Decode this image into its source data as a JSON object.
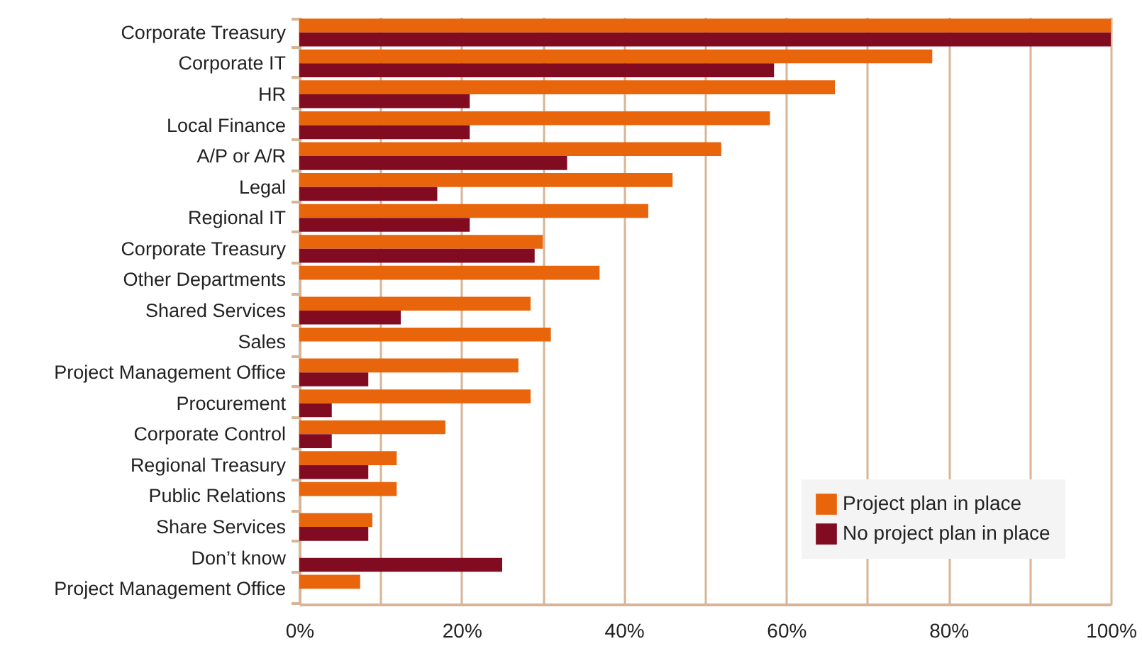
{
  "chart_data": {
    "type": "bar",
    "orientation": "horizontal",
    "categories": [
      "Corporate Treasury",
      "Corporate IT",
      "HR",
      "Local Finance",
      "A/P or A/R",
      "Legal",
      "Regional IT",
      "Corporate Treasury",
      "Other Departments",
      "Shared Services",
      "Sales",
      "Project Management Office",
      "Procurement",
      "Corporate Control",
      "Regional Treasury",
      "Public Relations",
      "Share Services",
      "Don’t know",
      "Project Management Office"
    ],
    "series": [
      {
        "name": "Project plan in place",
        "color": "#e8650c",
        "values": [
          100,
          78,
          66,
          58,
          52,
          46,
          43,
          30,
          37,
          28.5,
          31,
          27,
          28.5,
          18,
          12,
          12,
          9,
          null,
          7.5
        ]
      },
      {
        "name": "No project plan in place",
        "color": "#810c22",
        "values": [
          100,
          58.5,
          21,
          21,
          33,
          17,
          21,
          29,
          null,
          12.5,
          null,
          8.5,
          4,
          4,
          8.5,
          null,
          8.5,
          25,
          null
        ]
      }
    ],
    "xlim": [
      0,
      100
    ],
    "xticks": [
      {
        "value": 0,
        "label": "0%"
      },
      {
        "value": 10,
        "label": null
      },
      {
        "value": 20,
        "label": "20%"
      },
      {
        "value": 30,
        "label": null
      },
      {
        "value": 40,
        "label": "40%"
      },
      {
        "value": 50,
        "label": null
      },
      {
        "value": 60,
        "label": "60%"
      },
      {
        "value": 70,
        "label": null
      },
      {
        "value": 80,
        "label": "80%"
      },
      {
        "value": 90,
        "label": null
      },
      {
        "value": 100,
        "label": "100%"
      }
    ],
    "grid": "x",
    "legend": "bottom right"
  }
}
